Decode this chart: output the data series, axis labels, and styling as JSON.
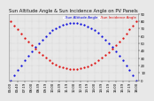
{
  "title": "Sun Altitude Angle & Sun Incidence Angle on PV Panels",
  "legend_altitude": "Sun Altitude Angle",
  "legend_incidence": "Sun Incidence Angle",
  "color_altitude": "#0000dd",
  "color_incidence": "#dd0000",
  "bg_color": "#e8e8e8",
  "grid_color": "#bbbbbb",
  "ymin": 0,
  "ymax": 90,
  "num_points": 37,
  "title_fontsize": 3.8,
  "legend_fontsize": 2.8,
  "tick_fontsize": 2.8,
  "markersize": 1.2
}
